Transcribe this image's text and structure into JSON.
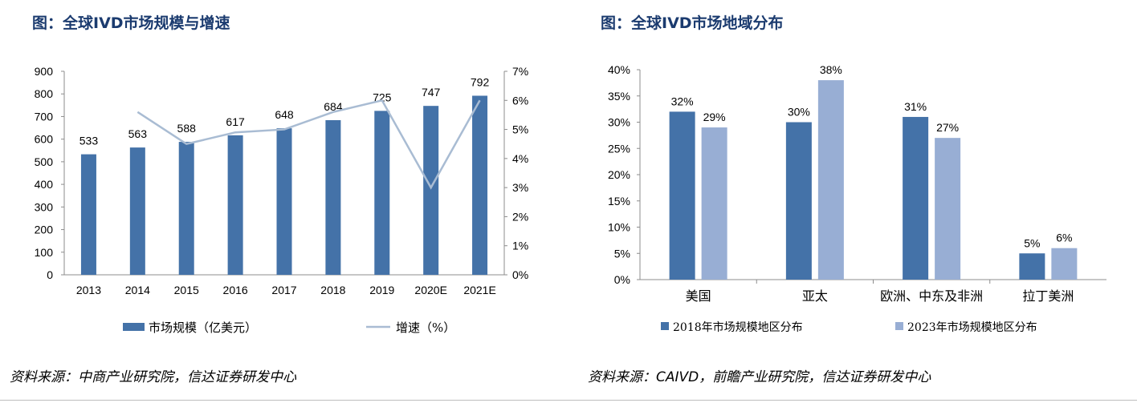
{
  "left": {
    "title": "图：全球IVD市场规模与增速",
    "source": "资料来源：中商产业研究院，信达证券研发中心"
  },
  "right": {
    "title": "图：全球IVD市场地域分布",
    "source": "资料来源：CAIVD，前瞻产业研究院，信达证券研发中心"
  },
  "colors": {
    "bar_dark": "#4472a8",
    "bar_light": "#98aed4",
    "line": "#a9bcd3",
    "title": "#1b3b6f"
  },
  "chart_data": [
    {
      "type": "bar",
      "categories": [
        "2013",
        "2014",
        "2015",
        "2016",
        "2017",
        "2018",
        "2019",
        "2020E",
        "2021E"
      ],
      "series": [
        {
          "name": "市场规模（亿美元）",
          "type": "bar",
          "axis": "left",
          "values": [
            533,
            563,
            588,
            617,
            648,
            684,
            725,
            747,
            792
          ],
          "labels": [
            "533",
            "563",
            "588",
            "617",
            "648",
            "684",
            "725",
            "747",
            "792"
          ]
        },
        {
          "name": "增速（%）",
          "type": "line",
          "axis": "right",
          "values": [
            null,
            5.6,
            4.5,
            4.9,
            5.0,
            5.6,
            6.0,
            3.0,
            6.0
          ]
        }
      ],
      "y_left": {
        "range": [
          0,
          900
        ],
        "ticks": [
          "0",
          "100",
          "200",
          "300",
          "400",
          "500",
          "600",
          "700",
          "800",
          "900"
        ]
      },
      "y_right": {
        "range": [
          0,
          7
        ],
        "ticks": [
          "0%",
          "1%",
          "2%",
          "3%",
          "4%",
          "5%",
          "6%",
          "7%"
        ]
      },
      "grid": false,
      "legend_position": "bottom"
    },
    {
      "type": "bar",
      "categories": [
        "美国",
        "亚太",
        "欧洲、中东及非洲",
        "拉丁美洲"
      ],
      "series": [
        {
          "name": "2018年市场规模地区分布",
          "values": [
            32,
            30,
            31,
            5
          ],
          "labels": [
            "32%",
            "30%",
            "31%",
            "5%"
          ]
        },
        {
          "name": "2023年市场规模地区分布",
          "values": [
            29,
            38,
            27,
            6
          ],
          "labels": [
            "29%",
            "38%",
            "27%",
            "6%"
          ]
        }
      ],
      "y": {
        "range": [
          0,
          40
        ],
        "ticks": [
          "0%",
          "5%",
          "10%",
          "15%",
          "20%",
          "25%",
          "30%",
          "35%",
          "40%"
        ]
      },
      "grid": false,
      "legend_position": "bottom"
    }
  ]
}
